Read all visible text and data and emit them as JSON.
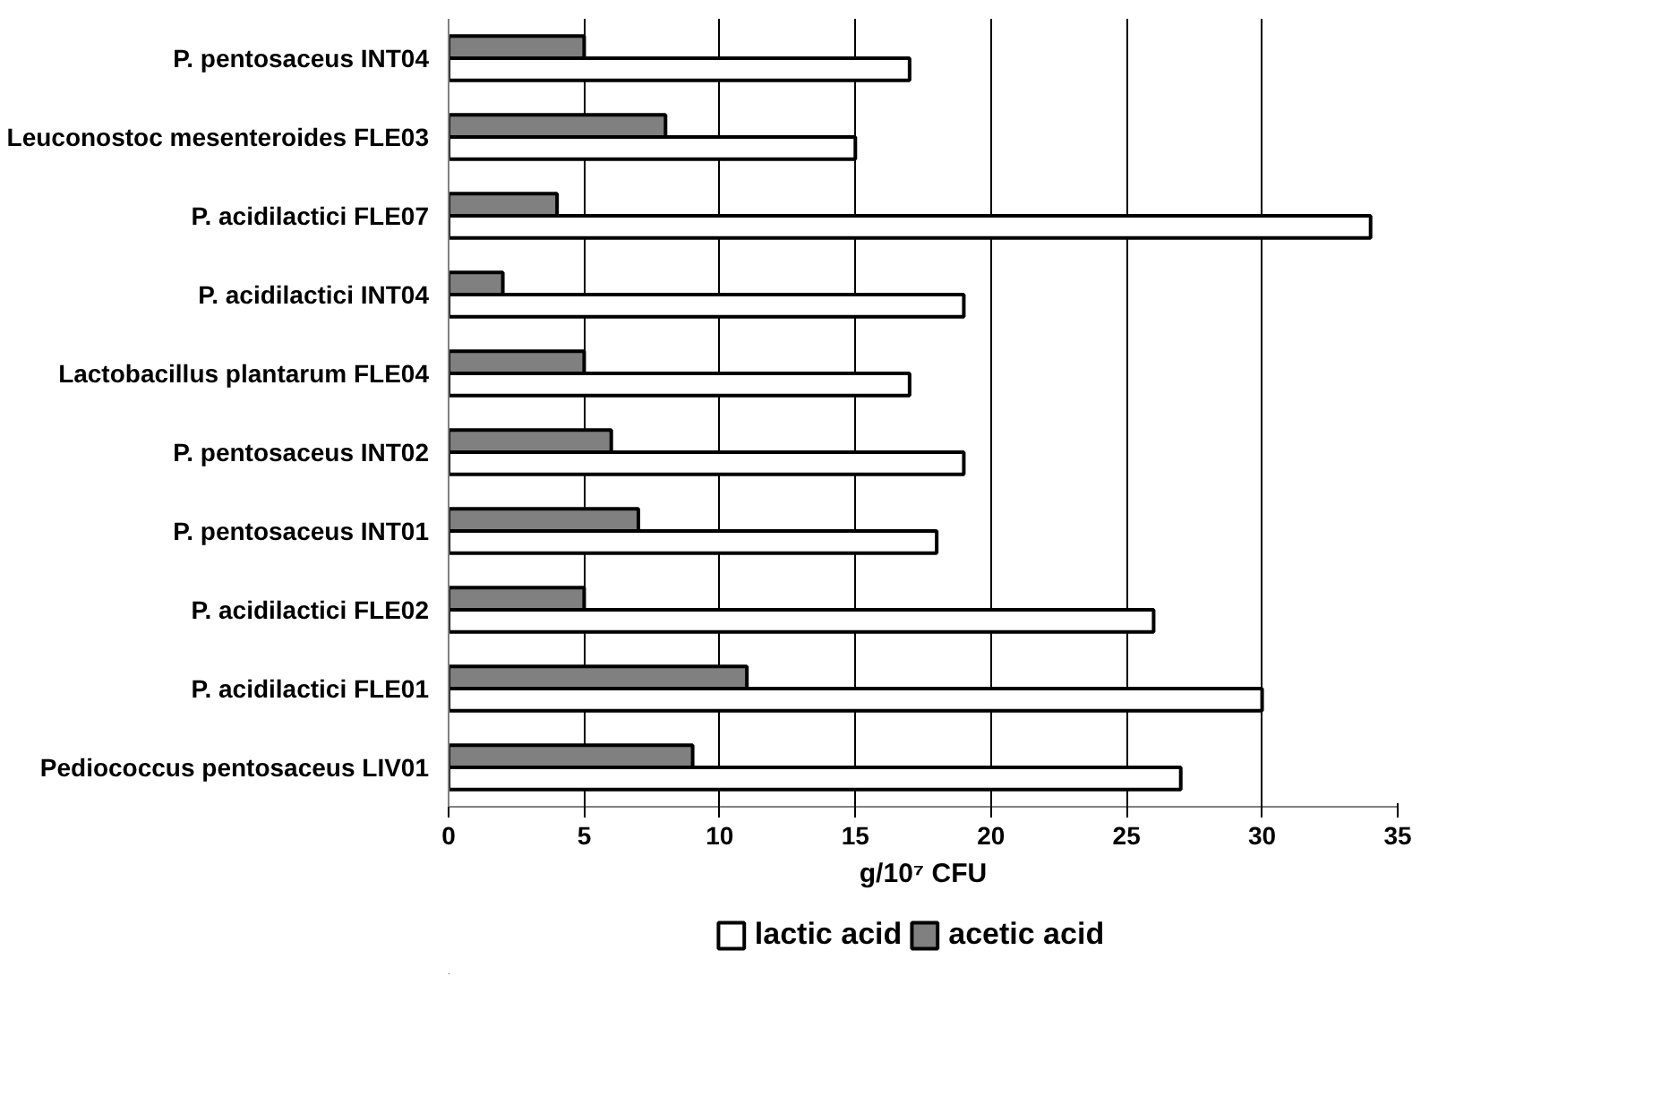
{
  "chart_data": {
    "type": "bar",
    "orientation": "horizontal",
    "categories": [
      "P. pentosaceus INT04",
      "Leuconostoc mesenteroides FLE03",
      "P. acidilactici FLE07",
      "P. acidilactici INT04",
      "Lactobacillus plantarum FLE04",
      "P. pentosaceus INT02",
      "P. pentosaceus INT01",
      "P. acidilactici FLE02",
      "P. acidilactici FLE01",
      "Pediococcus pentosaceus LIV01"
    ],
    "series": [
      {
        "name": "lactic acid",
        "color": "#ffffff",
        "values": [
          17,
          15,
          34,
          19,
          17,
          19,
          18,
          26,
          30,
          27
        ]
      },
      {
        "name": "acetic acid",
        "color": "#808080",
        "values": [
          5,
          8,
          4,
          2,
          5,
          6,
          7,
          5,
          11,
          9
        ]
      }
    ],
    "xlabel": "g/10⁷ CFU",
    "xlim": [
      0,
      35
    ],
    "xticks": [
      0,
      5,
      10,
      15,
      20,
      25,
      30,
      35
    ],
    "grid": "x",
    "legend": "bottom"
  }
}
